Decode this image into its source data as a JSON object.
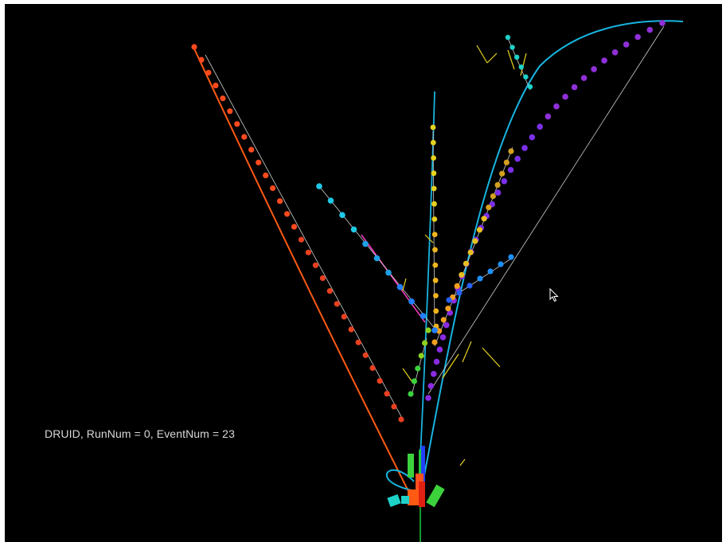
{
  "app": {
    "name": "DRUID"
  },
  "event_info": {
    "label": "DRUID, RunNum = 0, EventNum = 23"
  },
  "tracks": [
    {
      "name": "track-orange",
      "color": "#ff5a14"
    },
    {
      "name": "track-cyan-helix",
      "color": "#14b8e6"
    },
    {
      "name": "track-purple",
      "color": "#8a2be2"
    },
    {
      "name": "track-yellow",
      "color": "#e6d21e"
    },
    {
      "name": "track-amber",
      "color": "#f0a020"
    },
    {
      "name": "track-cyan-blue",
      "color": "#1ea0e6"
    },
    {
      "name": "track-blue",
      "color": "#2050e6"
    },
    {
      "name": "track-teal",
      "color": "#1ed2c8"
    },
    {
      "name": "track-green",
      "color": "#3cd23c"
    },
    {
      "name": "beam-axis",
      "color": "#1ecc3c"
    }
  ],
  "icons": {
    "cursor": "mouse-pointer-icon"
  }
}
